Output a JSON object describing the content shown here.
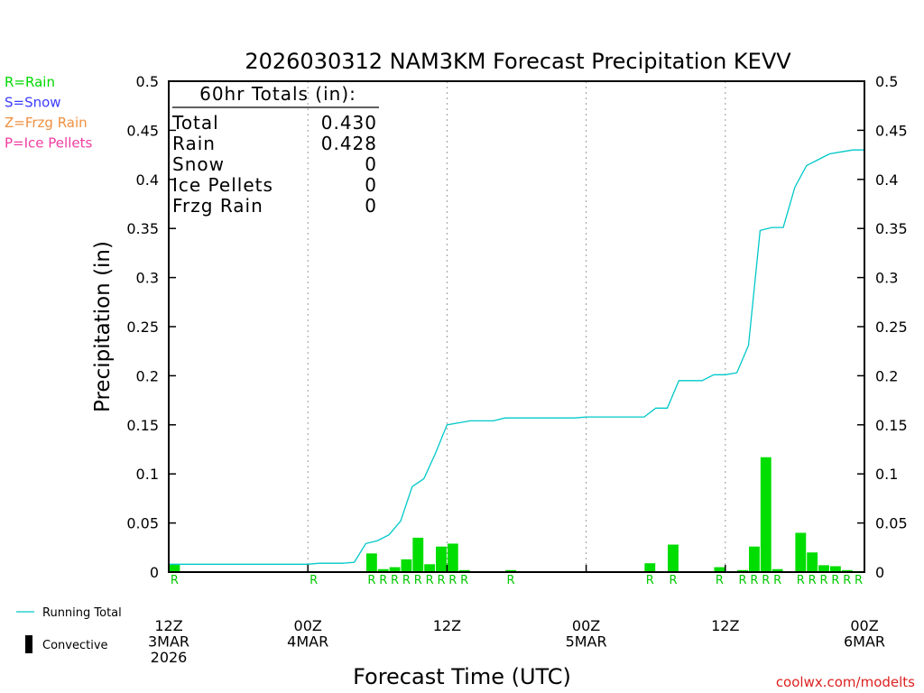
{
  "chart_data": {
    "type": "bar",
    "title": "2026030312 NAM3KM Forecast Precipitation KEVV",
    "ylabel": "Precipitation (in)",
    "xlabel": "Forecast Time (UTC)",
    "ylim": [
      0,
      0.5
    ],
    "yticks": [
      "0",
      "0.05",
      "0.1",
      "0.15",
      "0.2",
      "0.25",
      "0.3",
      "0.35",
      "0.4",
      "0.45",
      "0.5"
    ],
    "ytick_values": [
      0,
      0.05,
      0.1,
      0.15,
      0.2,
      0.25,
      0.3,
      0.35,
      0.4,
      0.45,
      0.5
    ],
    "xlim_hours": [
      0,
      60
    ],
    "xticks": [
      {
        "hour": 0,
        "lines": [
          "12Z",
          "3MAR",
          "2026"
        ]
      },
      {
        "hour": 12,
        "lines": [
          "00Z",
          "4MAR"
        ]
      },
      {
        "hour": 24,
        "lines": [
          "12Z"
        ]
      },
      {
        "hour": 36,
        "lines": [
          "00Z",
          "5MAR"
        ]
      },
      {
        "hour": 48,
        "lines": [
          "12Z"
        ]
      },
      {
        "hour": 60,
        "lines": [
          "00Z",
          "6MAR"
        ]
      }
    ],
    "grid_hours": [
      12,
      24,
      36,
      48
    ],
    "legend_left": [
      {
        "text": "R=Rain",
        "color": "#00d800"
      },
      {
        "text": "S=Snow",
        "color": "#3c3cff"
      },
      {
        "text": "Z=Frzg Rain",
        "color": "#f09040"
      },
      {
        "text": "P=Ice Pellets",
        "color": "#f03ca0"
      }
    ],
    "legend_bottom": [
      {
        "text": "Running Total",
        "kind": "line",
        "color": "#00c8c8"
      },
      {
        "text": "Convective",
        "kind": "bar",
        "color": "#000000"
      }
    ],
    "totals_box": {
      "header": "60hr Totals (in):",
      "rows": [
        {
          "label": "Total",
          "value": "0.430"
        },
        {
          "label": "Rain",
          "value": "0.428"
        },
        {
          "label": "Snow",
          "value": "0"
        },
        {
          "label": "Ice Pellets",
          "value": "0"
        },
        {
          "label": "Frzg Rain",
          "value": "0"
        }
      ]
    },
    "colors": {
      "bar": "#00dd00",
      "running_total": "#00c8c8",
      "ptype_label": "#00c800",
      "credit": "#dd2020"
    },
    "series": [
      {
        "name": "Precipitation",
        "bars": [
          {
            "hour": 0,
            "value": 0.008,
            "ptype": "R"
          },
          {
            "hour": 12,
            "value": 0.001,
            "ptype": "R"
          },
          {
            "hour": 17,
            "value": 0.019,
            "ptype": "R"
          },
          {
            "hour": 18,
            "value": 0.003,
            "ptype": "R"
          },
          {
            "hour": 19,
            "value": 0.005,
            "ptype": "R"
          },
          {
            "hour": 20,
            "value": 0.013,
            "ptype": "R"
          },
          {
            "hour": 21,
            "value": 0.035,
            "ptype": "R"
          },
          {
            "hour": 22,
            "value": 0.008,
            "ptype": "R"
          },
          {
            "hour": 23,
            "value": 0.026,
            "ptype": "R"
          },
          {
            "hour": 24,
            "value": 0.029,
            "ptype": "R"
          },
          {
            "hour": 25,
            "value": 0.002,
            "ptype": "R"
          },
          {
            "hour": 29,
            "value": 0.002,
            "ptype": "R"
          },
          {
            "hour": 41,
            "value": 0.009,
            "ptype": "R"
          },
          {
            "hour": 43,
            "value": 0.028,
            "ptype": "R"
          },
          {
            "hour": 47,
            "value": 0.005,
            "ptype": "R"
          },
          {
            "hour": 49,
            "value": 0.002,
            "ptype": "R"
          },
          {
            "hour": 50,
            "value": 0.026,
            "ptype": "R"
          },
          {
            "hour": 51,
            "value": 0.117,
            "ptype": "R"
          },
          {
            "hour": 52,
            "value": 0.003,
            "ptype": "R"
          },
          {
            "hour": 54,
            "value": 0.04,
            "ptype": "R"
          },
          {
            "hour": 55,
            "value": 0.02,
            "ptype": "R"
          },
          {
            "hour": 56,
            "value": 0.007,
            "ptype": "R"
          },
          {
            "hour": 57,
            "value": 0.006,
            "ptype": "R"
          },
          {
            "hour": 58,
            "value": 0.002,
            "ptype": "R"
          },
          {
            "hour": 59,
            "value": 0.001,
            "ptype": "R"
          }
        ]
      },
      {
        "name": "Running Total",
        "points": [
          [
            0,
            0.008
          ],
          [
            1,
            0.008
          ],
          [
            12,
            0.008
          ],
          [
            13,
            0.009
          ],
          [
            15,
            0.009
          ],
          [
            16,
            0.01
          ],
          [
            17,
            0.029
          ],
          [
            18,
            0.032
          ],
          [
            19,
            0.038
          ],
          [
            20,
            0.052
          ],
          [
            21,
            0.087
          ],
          [
            22,
            0.095
          ],
          [
            23,
            0.121
          ],
          [
            24,
            0.15
          ],
          [
            25,
            0.152
          ],
          [
            26,
            0.154
          ],
          [
            28,
            0.154
          ],
          [
            29,
            0.157
          ],
          [
            35,
            0.157
          ],
          [
            36,
            0.158
          ],
          [
            41,
            0.158
          ],
          [
            42,
            0.167
          ],
          [
            43,
            0.167
          ],
          [
            44,
            0.195
          ],
          [
            46,
            0.195
          ],
          [
            47,
            0.201
          ],
          [
            48,
            0.201
          ],
          [
            49,
            0.203
          ],
          [
            50,
            0.231
          ],
          [
            51,
            0.348
          ],
          [
            52,
            0.351
          ],
          [
            53,
            0.351
          ],
          [
            54,
            0.392
          ],
          [
            55,
            0.414
          ],
          [
            56,
            0.42
          ],
          [
            57,
            0.426
          ],
          [
            58,
            0.428
          ],
          [
            59,
            0.43
          ],
          [
            60,
            0.43
          ]
        ]
      }
    ],
    "credit": "coolwx.com/modelts"
  }
}
